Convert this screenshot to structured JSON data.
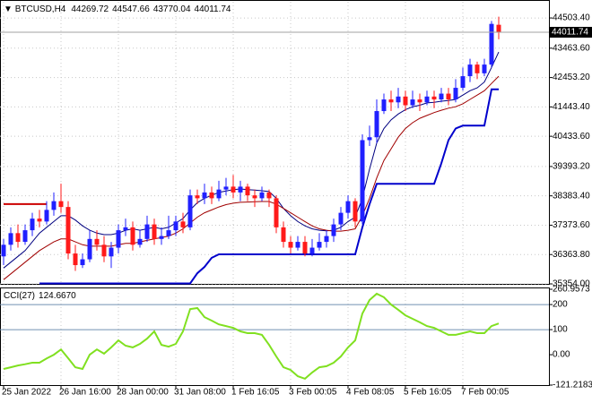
{
  "chart_data": [
    {
      "type": "candlestick",
      "title": "BTCUSD,H4",
      "up_color": "#2020ff",
      "down_color": "#ff1a1a",
      "grid": true,
      "categories": [
        "25 Jan 2022",
        null,
        null,
        null,
        null,
        null,
        null,
        null,
        "26 Jan 16:00",
        null,
        null,
        null,
        null,
        null,
        null,
        null,
        "28 Jan 00:00",
        null,
        null,
        null,
        null,
        null,
        null,
        null,
        "31 Jan 08:00",
        null,
        null,
        null,
        null,
        null,
        null,
        null,
        "1 Feb 16:05",
        null,
        null,
        null,
        null,
        null,
        null,
        null,
        "3 Feb 00:05",
        null,
        null,
        null,
        null,
        null,
        null,
        null,
        "4 Feb 08:05",
        null,
        null,
        null,
        null,
        null,
        null,
        null,
        "5 Feb 16:05",
        null,
        null,
        null,
        null,
        null,
        null,
        null,
        "7 Feb 00:05",
        null,
        null,
        null,
        null,
        null
      ],
      "open": [
        36300,
        36700,
        37100,
        36800,
        37200,
        37600,
        37500,
        37900,
        38200,
        38000,
        36400,
        36000,
        36200,
        36900,
        36700,
        36300,
        36600,
        37200,
        37300,
        36700,
        36900,
        37400,
        36900,
        37000,
        37200,
        37500,
        37300,
        38400,
        38300,
        38500,
        38300,
        38600,
        38700,
        38500,
        38700,
        38400,
        38300,
        38500,
        38300,
        37300,
        36800,
        36600,
        36800,
        36400,
        36600,
        36800,
        37000,
        37400,
        37800,
        38200,
        37500,
        40300,
        40400,
        41300,
        41700,
        41600,
        41800,
        41500,
        41700,
        41600,
        41800,
        41700,
        41900,
        41700,
        42100,
        42500,
        42900,
        42600,
        42900,
        44269.72
      ],
      "high": [
        36900,
        37300,
        37400,
        37400,
        37800,
        37900,
        38200,
        38500,
        38800,
        38200,
        36700,
        36400,
        37200,
        37200,
        37000,
        36800,
        37400,
        37600,
        37500,
        37200,
        37700,
        37600,
        37300,
        37700,
        37700,
        37800,
        38600,
        38600,
        38800,
        38700,
        38900,
        39000,
        39100,
        38900,
        38800,
        38600,
        38700,
        38600,
        38400,
        37500,
        37000,
        37000,
        37000,
        36900,
        37100,
        37200,
        37600,
        38000,
        38400,
        38300,
        40500,
        40800,
        41700,
        41900,
        42000,
        42100,
        42000,
        42000,
        41900,
        42000,
        42000,
        42100,
        42100,
        42400,
        42800,
        43100,
        43000,
        43100,
        44400,
        44547.66
      ],
      "low": [
        36000,
        36500,
        36600,
        36700,
        37000,
        37300,
        37400,
        37700,
        37800,
        36200,
        35800,
        35900,
        36100,
        36500,
        36100,
        35900,
        36400,
        37000,
        36500,
        36600,
        36800,
        36700,
        36700,
        36900,
        37000,
        37100,
        37200,
        38100,
        38100,
        38100,
        38200,
        38400,
        38300,
        38200,
        38200,
        38000,
        38200,
        38000,
        37100,
        36600,
        36400,
        36500,
        36300,
        36300,
        36500,
        36600,
        36800,
        37200,
        37600,
        37300,
        37400,
        40100,
        40200,
        41200,
        41300,
        41400,
        41300,
        41400,
        41300,
        41500,
        41400,
        41600,
        41500,
        41600,
        42000,
        42300,
        42400,
        42500,
        42800,
        43770.04
      ],
      "close": [
        36700,
        37100,
        36800,
        37200,
        37600,
        37500,
        37900,
        38200,
        38000,
        36400,
        36000,
        36200,
        36900,
        36700,
        36300,
        36600,
        37200,
        37300,
        36700,
        36900,
        37400,
        36900,
        37000,
        37200,
        37500,
        37300,
        38400,
        38300,
        38500,
        38300,
        38600,
        38700,
        38500,
        38700,
        38400,
        38300,
        38500,
        38300,
        37300,
        36800,
        36600,
        36800,
        36400,
        36600,
        36800,
        37000,
        37400,
        37800,
        38200,
        37500,
        40300,
        40400,
        41300,
        41700,
        41600,
        41800,
        41500,
        41700,
        41600,
        41800,
        41700,
        41900,
        41700,
        42100,
        42500,
        42900,
        42600,
        42900,
        44300,
        44011.74
      ],
      "series": [
        {
          "color": "#000080",
          "width": 1,
          "values": [
            35900,
            36100,
            36300,
            36500,
            36800,
            37100,
            37300,
            37500,
            37700,
            37700,
            37550,
            37350,
            37200,
            37100,
            37050,
            37050,
            37100,
            37200,
            37250,
            37200,
            37250,
            37300,
            37250,
            37300,
            37450,
            37600,
            37900,
            38150,
            38300,
            38400,
            38500,
            38550,
            38600,
            38620,
            38600,
            38580,
            38560,
            38530,
            38300,
            37950,
            37700,
            37500,
            37350,
            37250,
            37200,
            37180,
            37200,
            37300,
            37500,
            37650,
            38300,
            39300,
            40200,
            40700,
            41000,
            41200,
            41350,
            41450,
            41500,
            41580,
            41600,
            41640,
            41660,
            41700,
            41850,
            42000,
            42100,
            42300,
            42800,
            43330
          ]
        },
        {
          "color": "#a00000",
          "width": 1,
          "values": [
            35500,
            35700,
            35900,
            36100,
            36300,
            36500,
            36650,
            36800,
            36900,
            36900,
            36800,
            36700,
            36650,
            36650,
            36650,
            36650,
            36700,
            36750,
            36750,
            36800,
            36850,
            36900,
            36950,
            37000,
            37100,
            37250,
            37450,
            37650,
            37800,
            37900,
            38000,
            38080,
            38130,
            38160,
            38170,
            38180,
            38190,
            38190,
            38100,
            37950,
            37800,
            37650,
            37500,
            37350,
            37250,
            37200,
            37170,
            37170,
            37200,
            37250,
            37700,
            38300,
            39000,
            39600,
            40000,
            40400,
            40700,
            40900,
            41050,
            41150,
            41250,
            41330,
            41400,
            41450,
            41550,
            41700,
            41850,
            42000,
            42250,
            42500
          ]
        },
        {
          "color": "#cc0000",
          "width": 2,
          "values": [
            38100,
            38100,
            38100,
            38100,
            38100,
            38100,
            38100,
            null,
            null,
            null,
            null,
            null,
            null,
            null,
            null,
            null,
            null,
            null,
            null,
            null,
            null,
            null,
            null,
            null,
            null,
            null,
            null,
            null,
            null,
            null,
            null,
            null,
            null,
            null,
            null,
            null,
            null,
            null,
            null,
            null,
            null,
            null,
            null,
            null,
            null,
            null,
            null,
            null,
            null,
            null,
            null,
            null,
            null,
            null,
            null,
            null,
            null,
            null,
            null,
            null,
            null,
            null,
            null,
            null,
            null,
            null,
            null,
            null,
            null,
            null
          ]
        },
        {
          "color": "#0000cc",
          "width": 2,
          "values": [
            null,
            null,
            null,
            null,
            null,
            35370,
            35370,
            35370,
            35370,
            35370,
            35370,
            35370,
            35370,
            35370,
            35370,
            35370,
            35370,
            35370,
            35370,
            35370,
            35370,
            35370,
            35370,
            35370,
            35370,
            35370,
            35370,
            35720,
            35940,
            36250,
            36370,
            36370,
            36370,
            36370,
            36370,
            36370,
            36370,
            36370,
            36370,
            36370,
            36370,
            36370,
            36370,
            36370,
            36370,
            36370,
            36370,
            36370,
            36370,
            36370,
            37300,
            38100,
            38800,
            38800,
            38800,
            38800,
            38800,
            38800,
            38800,
            38800,
            38800,
            39500,
            40300,
            40700,
            40800,
            40800,
            40800,
            40800,
            42050,
            42050
          ]
        }
      ],
      "ylim": [
        35354,
        45060
      ],
      "yticks": [
        {
          "value": 44503.4,
          "label": "44503.40"
        },
        {
          "value": 43463.6,
          "label": "43463.60"
        },
        {
          "value": 42453.2,
          "label": "42453.20"
        },
        {
          "value": 41443.4,
          "label": "41443.40"
        },
        {
          "value": 40433.6,
          "label": "40433.60"
        },
        {
          "value": 39393.2,
          "label": "39393.20"
        },
        {
          "value": 38383.4,
          "label": "38383.40"
        },
        {
          "value": 37373.6,
          "label": "37373.60"
        },
        {
          "value": 36363.8,
          "label": "36363.80"
        },
        {
          "value": 35354,
          "label": "35354.00"
        }
      ]
    },
    {
      "type": "line",
      "title": "CCI(27)",
      "current_label": "124.6670",
      "color": "#80e020",
      "values": [
        -57,
        -50,
        -43,
        -38,
        -32,
        -32,
        -15,
        0,
        21,
        -14,
        -50,
        -57,
        0,
        21,
        4,
        29,
        57,
        36,
        29,
        43,
        64,
        93,
        39,
        32,
        43,
        93,
        182,
        186,
        150,
        136,
        121,
        114,
        107,
        93,
        86,
        86,
        79,
        39,
        -7,
        -50,
        -61,
        -86,
        -96,
        -71,
        -50,
        -46,
        -32,
        -7,
        29,
        57,
        164,
        218,
        243,
        229,
        200,
        179,
        157,
        143,
        129,
        114,
        107,
        93,
        79,
        79,
        86,
        93,
        86,
        86,
        114,
        124.667
      ],
      "levels": [
        200,
        100
      ],
      "ylim": [
        -121.2183,
        260.9573
      ],
      "yticks": [
        260.9573,
        200,
        100,
        {
          "value": 0,
          "label": "0.00"
        },
        -121.2183
      ]
    }
  ]
}
